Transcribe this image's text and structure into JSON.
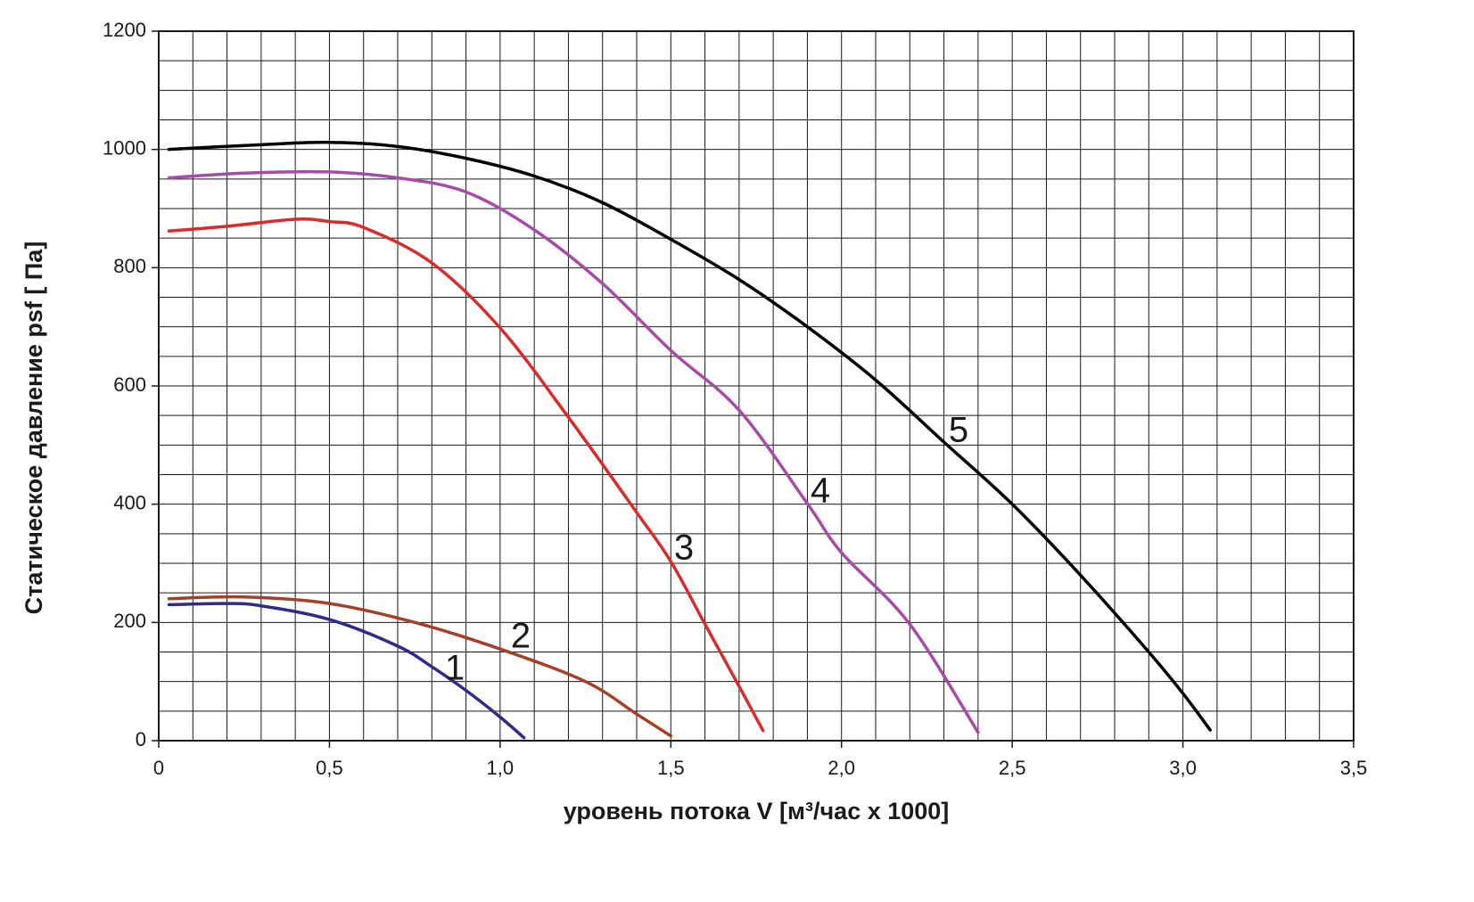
{
  "chart_data": {
    "type": "line",
    "xlabel": "уровень потока  V [м³/час x 1000]",
    "ylabel": "Статическое давление  psf [ Па]",
    "xlim": [
      0,
      3.5
    ],
    "ylim": [
      0,
      1200
    ],
    "xticks": [
      0,
      {
        "value": 0.5,
        "label": "0,5"
      },
      {
        "value": 1.0,
        "label": "1,0"
      },
      {
        "value": 1.5,
        "label": "1,5"
      },
      {
        "value": 2.0,
        "label": "2,0"
      },
      {
        "value": 2.5,
        "label": "2,5"
      },
      {
        "value": 3.0,
        "label": "3,0"
      },
      {
        "value": 3.5,
        "label": "3,5"
      }
    ],
    "yticks": [
      0,
      200,
      400,
      600,
      800,
      1000,
      1200
    ],
    "xgrid": [
      0.1,
      0.2,
      0.3,
      0.4,
      0.5,
      0.6,
      0.7,
      0.8,
      0.9,
      1.0,
      1.1,
      1.2,
      1.3,
      1.4,
      1.5,
      1.6,
      1.7,
      1.8,
      1.9,
      2.0,
      2.1,
      2.2,
      2.3,
      2.4,
      2.5,
      2.6,
      2.7,
      2.8,
      2.9,
      3.0,
      3.1,
      3.2,
      3.3,
      3.4
    ],
    "ygrid": [
      50,
      100,
      150,
      200,
      250,
      300,
      350,
      400,
      450,
      500,
      550,
      600,
      650,
      700,
      750,
      800,
      850,
      900,
      950,
      1000,
      1050,
      1100,
      1150
    ],
    "grid": true,
    "series": [
      {
        "name": "1",
        "color": "#2e2c86",
        "x": [
          0.03,
          0.2,
          0.3,
          0.5,
          0.7,
          0.8,
          0.9,
          1.0,
          1.07
        ],
        "values": [
          230,
          232,
          228,
          205,
          160,
          125,
          85,
          40,
          5
        ]
      },
      {
        "name": "2",
        "color": "#a3402a",
        "x": [
          0.03,
          0.25,
          0.5,
          0.75,
          1.0,
          1.25,
          1.4,
          1.5
        ],
        "values": [
          240,
          243,
          232,
          200,
          155,
          100,
          45,
          8
        ]
      },
      {
        "name": "3",
        "color": "#d92b2b",
        "x": [
          0.03,
          0.2,
          0.4,
          0.5,
          0.6,
          0.8,
          1.0,
          1.2,
          1.4,
          1.5,
          1.6,
          1.7,
          1.77
        ],
        "values": [
          862,
          870,
          882,
          878,
          868,
          808,
          698,
          547,
          386,
          303,
          197,
          92,
          17
        ]
      },
      {
        "name": "4",
        "color": "#a64ca6",
        "x": [
          0.03,
          0.25,
          0.5,
          0.7,
          0.9,
          1.1,
          1.3,
          1.5,
          1.7,
          1.9,
          2.0,
          2.2,
          2.4
        ],
        "values": [
          952,
          960,
          962,
          952,
          928,
          864,
          773,
          660,
          559,
          401,
          318,
          197,
          14
        ]
      },
      {
        "name": "5",
        "color": "#000000",
        "x": [
          0.03,
          0.3,
          0.5,
          0.7,
          0.9,
          1.1,
          1.3,
          1.5,
          1.7,
          1.9,
          2.1,
          2.3,
          2.5,
          2.7,
          2.9,
          3.0,
          3.08
        ],
        "values": [
          1000,
          1008,
          1012,
          1005,
          985,
          955,
          910,
          848,
          780,
          700,
          610,
          505,
          400,
          280,
          150,
          80,
          18
        ]
      }
    ]
  }
}
